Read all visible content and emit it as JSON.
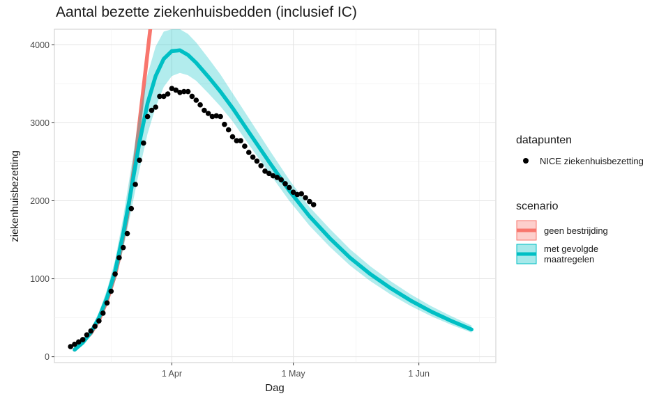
{
  "chart_data": {
    "type": "line",
    "title": "Aantal bezette ziekenhuisbedden (inclusief IC)",
    "xlabel": "Dag",
    "ylabel": "ziekenhuisbezetting",
    "x_ticks": [
      {
        "date": "2020-04-01",
        "label": "1 Apr"
      },
      {
        "date": "2020-05-01",
        "label": "1 May"
      },
      {
        "date": "2020-06-01",
        "label": "1 Jun"
      }
    ],
    "y_ticks": [
      0,
      1000,
      2000,
      3000,
      4000
    ],
    "xlim": [
      "2020-03-03",
      "2020-06-20"
    ],
    "ylim": [
      -75,
      4200
    ],
    "grid": true,
    "legend_placement": "right",
    "legends": [
      {
        "title": "datapunten",
        "entries": [
          {
            "label": "NICE ziekenhuisbezetting",
            "color": "#000000",
            "shape": "point"
          }
        ]
      },
      {
        "title": "scenario",
        "entries": [
          {
            "label": "geen bestrijding",
            "color": "#F8766D",
            "shape": "line-band"
          },
          {
            "label": "met gevolgde\n maatregelen",
            "color": "#00BFC4",
            "shape": "line-band"
          }
        ]
      }
    ],
    "series": [
      {
        "name": "geen bestrijding",
        "kind": "line",
        "color": "#F8766D",
        "x": [
          "2020-03-08",
          "2020-03-12",
          "2020-03-14",
          "2020-03-16",
          "2020-03-18",
          "2020-03-19",
          "2020-03-21",
          "2020-03-23",
          "2020-03-25",
          "2020-03-27"
        ],
        "y": [
          90,
          300,
          470,
          720,
          1050,
          1270,
          1800,
          2550,
          3450,
          4350
        ]
      },
      {
        "name": "met gevolgde maatregelen",
        "kind": "line-band",
        "color": "#00BFC4",
        "x": [
          "2020-03-08",
          "2020-03-10",
          "2020-03-12",
          "2020-03-14",
          "2020-03-16",
          "2020-03-18",
          "2020-03-20",
          "2020-03-22",
          "2020-03-24",
          "2020-03-26",
          "2020-03-28",
          "2020-03-30",
          "2020-04-01",
          "2020-04-03",
          "2020-04-05",
          "2020-04-07",
          "2020-04-10",
          "2020-04-13",
          "2020-04-16",
          "2020-04-20",
          "2020-04-25",
          "2020-04-30",
          "2020-05-05",
          "2020-05-10",
          "2020-05-15",
          "2020-05-20",
          "2020-05-25",
          "2020-05-30",
          "2020-06-04",
          "2020-06-09",
          "2020-06-14"
        ],
        "y": [
          90,
          180,
          310,
          500,
          760,
          1100,
          1580,
          2150,
          2750,
          3250,
          3600,
          3820,
          3920,
          3930,
          3870,
          3770,
          3590,
          3400,
          3190,
          2880,
          2500,
          2130,
          1800,
          1520,
          1270,
          1060,
          880,
          720,
          580,
          460,
          350
        ],
        "lower": [
          70,
          150,
          270,
          440,
          670,
          970,
          1380,
          1880,
          2400,
          2860,
          3200,
          3460,
          3600,
          3640,
          3610,
          3540,
          3380,
          3210,
          3020,
          2720,
          2360,
          2000,
          1680,
          1410,
          1170,
          970,
          800,
          650,
          520,
          410,
          310
        ],
        "upper": [
          110,
          220,
          360,
          570,
          860,
          1240,
          1790,
          2440,
          3100,
          3620,
          3980,
          4170,
          4200,
          4200,
          4140,
          4030,
          3830,
          3620,
          3380,
          3060,
          2660,
          2270,
          1920,
          1640,
          1380,
          1160,
          970,
          800,
          650,
          520,
          400
        ]
      },
      {
        "name": "NICE ziekenhuisbezetting",
        "kind": "scatter",
        "color": "#000000",
        "x": [
          "2020-03-07",
          "2020-03-08",
          "2020-03-09",
          "2020-03-10",
          "2020-03-11",
          "2020-03-12",
          "2020-03-13",
          "2020-03-14",
          "2020-03-15",
          "2020-03-16",
          "2020-03-17",
          "2020-03-18",
          "2020-03-19",
          "2020-03-20",
          "2020-03-21",
          "2020-03-22",
          "2020-03-23",
          "2020-03-24",
          "2020-03-25",
          "2020-03-26",
          "2020-03-27",
          "2020-03-28",
          "2020-03-29",
          "2020-03-30",
          "2020-03-31",
          "2020-04-01",
          "2020-04-02",
          "2020-04-03",
          "2020-04-04",
          "2020-04-05",
          "2020-04-06",
          "2020-04-07",
          "2020-04-08",
          "2020-04-09",
          "2020-04-10",
          "2020-04-11",
          "2020-04-12",
          "2020-04-13",
          "2020-04-14",
          "2020-04-15",
          "2020-04-16",
          "2020-04-17",
          "2020-04-18",
          "2020-04-19",
          "2020-04-20",
          "2020-04-21",
          "2020-04-22",
          "2020-04-23",
          "2020-04-24",
          "2020-04-25",
          "2020-04-26",
          "2020-04-27",
          "2020-04-28",
          "2020-04-29",
          "2020-04-30",
          "2020-05-01",
          "2020-05-02",
          "2020-05-03",
          "2020-05-04",
          "2020-05-05",
          "2020-05-06"
        ],
        "y": [
          130,
          160,
          190,
          220,
          280,
          330,
          390,
          460,
          560,
          690,
          840,
          1060,
          1270,
          1400,
          1580,
          1900,
          2210,
          2520,
          2740,
          3080,
          3160,
          3200,
          3340,
          3340,
          3370,
          3440,
          3420,
          3390,
          3400,
          3400,
          3340,
          3290,
          3230,
          3160,
          3120,
          3080,
          3090,
          3080,
          2980,
          2910,
          2820,
          2770,
          2770,
          2700,
          2620,
          2560,
          2510,
          2450,
          2380,
          2350,
          2320,
          2300,
          2270,
          2220,
          2170,
          2110,
          2080,
          2090,
          2040,
          1990,
          1950
        ]
      }
    ]
  }
}
